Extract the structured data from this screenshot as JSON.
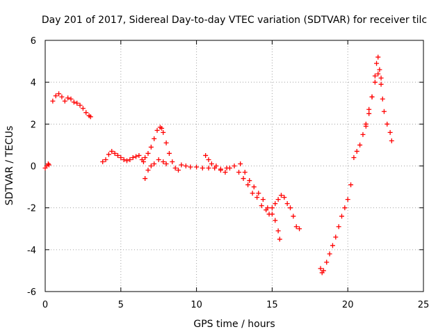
{
  "chart_data": {
    "type": "scatter",
    "title": "Day 201 of 2017, Sidereal Day-to-day VTEC variation (SDTVAR) for receiver tilc",
    "xlabel": "GPS time / hours",
    "ylabel": "SDTVAR / TECUs",
    "xlim": [
      0,
      25
    ],
    "ylim": [
      -6,
      6
    ],
    "xticks": [
      0,
      5,
      10,
      15,
      20,
      25
    ],
    "yticks": [
      -6,
      -4,
      -2,
      0,
      2,
      4,
      6
    ],
    "xtick_labels": [
      "0",
      "5",
      "10",
      "15",
      "20",
      "25"
    ],
    "ytick_labels": [
      "-6",
      "-4",
      "-2",
      "0",
      "2",
      "4",
      "6"
    ],
    "grid": true,
    "marker": "+",
    "color": "#ff0000",
    "series": [
      {
        "name": "SDTVAR",
        "x": [
          0.0,
          0.1,
          0.2,
          0.25,
          0.5,
          0.7,
          0.9,
          1.1,
          1.3,
          1.5,
          1.7,
          1.9,
          2.1,
          2.3,
          2.5,
          2.7,
          2.9,
          3.0,
          3.8,
          4.0,
          4.2,
          4.4,
          4.6,
          4.8,
          5.0,
          5.2,
          5.4,
          5.6,
          5.8,
          6.0,
          6.2,
          6.4,
          6.5,
          6.6,
          6.8,
          7.0,
          7.2,
          7.4,
          7.6,
          7.7,
          7.8,
          8.0,
          8.2,
          8.4,
          8.6,
          8.8,
          9.0,
          9.3,
          9.6,
          10.0,
          10.4,
          10.8,
          11.2,
          11.6,
          12.0,
          6.6,
          6.8,
          7.0,
          7.2,
          7.5,
          7.8,
          8.0,
          10.6,
          10.8,
          11.0,
          11.3,
          11.6,
          11.9,
          12.2,
          12.5,
          12.8,
          13.1,
          13.4,
          13.7,
          14.0,
          14.3,
          14.6,
          14.8,
          15.0,
          15.2,
          15.4,
          15.6,
          15.8,
          16.0,
          16.2,
          16.4,
          16.6,
          16.8,
          12.9,
          13.2,
          13.5,
          13.8,
          14.1,
          14.4,
          14.7,
          15.0,
          15.2,
          15.4,
          15.5,
          18.2,
          18.3,
          18.4,
          18.6,
          18.8,
          19.0,
          19.2,
          19.4,
          19.6,
          19.8,
          20.0,
          20.2,
          20.4,
          20.6,
          20.8,
          21.0,
          21.2,
          21.4,
          21.6,
          21.8,
          21.9,
          22.0,
          22.1,
          22.2,
          22.3,
          22.4,
          22.6,
          22.8,
          22.9,
          21.2,
          21.4,
          21.6,
          21.8,
          22.0,
          22.2
        ],
        "y": [
          -0.1,
          0.0,
          0.1,
          0.05,
          3.1,
          3.35,
          3.45,
          3.3,
          3.1,
          3.25,
          3.2,
          3.05,
          3.0,
          2.9,
          2.75,
          2.55,
          2.4,
          2.35,
          0.2,
          0.3,
          0.55,
          0.7,
          0.6,
          0.5,
          0.4,
          0.3,
          0.25,
          0.3,
          0.4,
          0.45,
          0.5,
          0.3,
          0.2,
          0.4,
          0.6,
          0.9,
          1.3,
          1.7,
          1.85,
          1.8,
          1.6,
          1.1,
          0.6,
          0.2,
          -0.1,
          -0.2,
          0.05,
          0.0,
          -0.05,
          -0.05,
          -0.1,
          -0.1,
          -0.1,
          -0.15,
          -0.1,
          -0.6,
          -0.2,
          0.0,
          0.1,
          0.3,
          0.2,
          0.1,
          0.5,
          0.3,
          0.1,
          0.0,
          -0.2,
          -0.3,
          -0.1,
          0.0,
          -0.3,
          -0.6,
          -0.9,
          -1.3,
          -1.5,
          -1.9,
          -2.1,
          -2.3,
          -2.0,
          -1.8,
          -1.6,
          -1.4,
          -1.5,
          -1.8,
          -2.0,
          -2.4,
          -2.9,
          -3.0,
          0.1,
          -0.3,
          -0.7,
          -1.0,
          -1.3,
          -1.6,
          -2.0,
          -2.3,
          -2.6,
          -3.1,
          -3.5,
          -4.9,
          -5.1,
          -5.0,
          -4.6,
          -4.2,
          -3.8,
          -3.4,
          -2.9,
          -2.4,
          -2.0,
          -1.6,
          -0.9,
          0.4,
          0.7,
          1.0,
          1.5,
          2.0,
          2.7,
          3.3,
          4.3,
          4.9,
          5.2,
          4.6,
          3.9,
          3.2,
          2.6,
          2.0,
          1.6,
          1.2,
          1.9,
          2.5,
          3.3,
          4.0,
          4.4,
          4.2
        ]
      }
    ]
  }
}
